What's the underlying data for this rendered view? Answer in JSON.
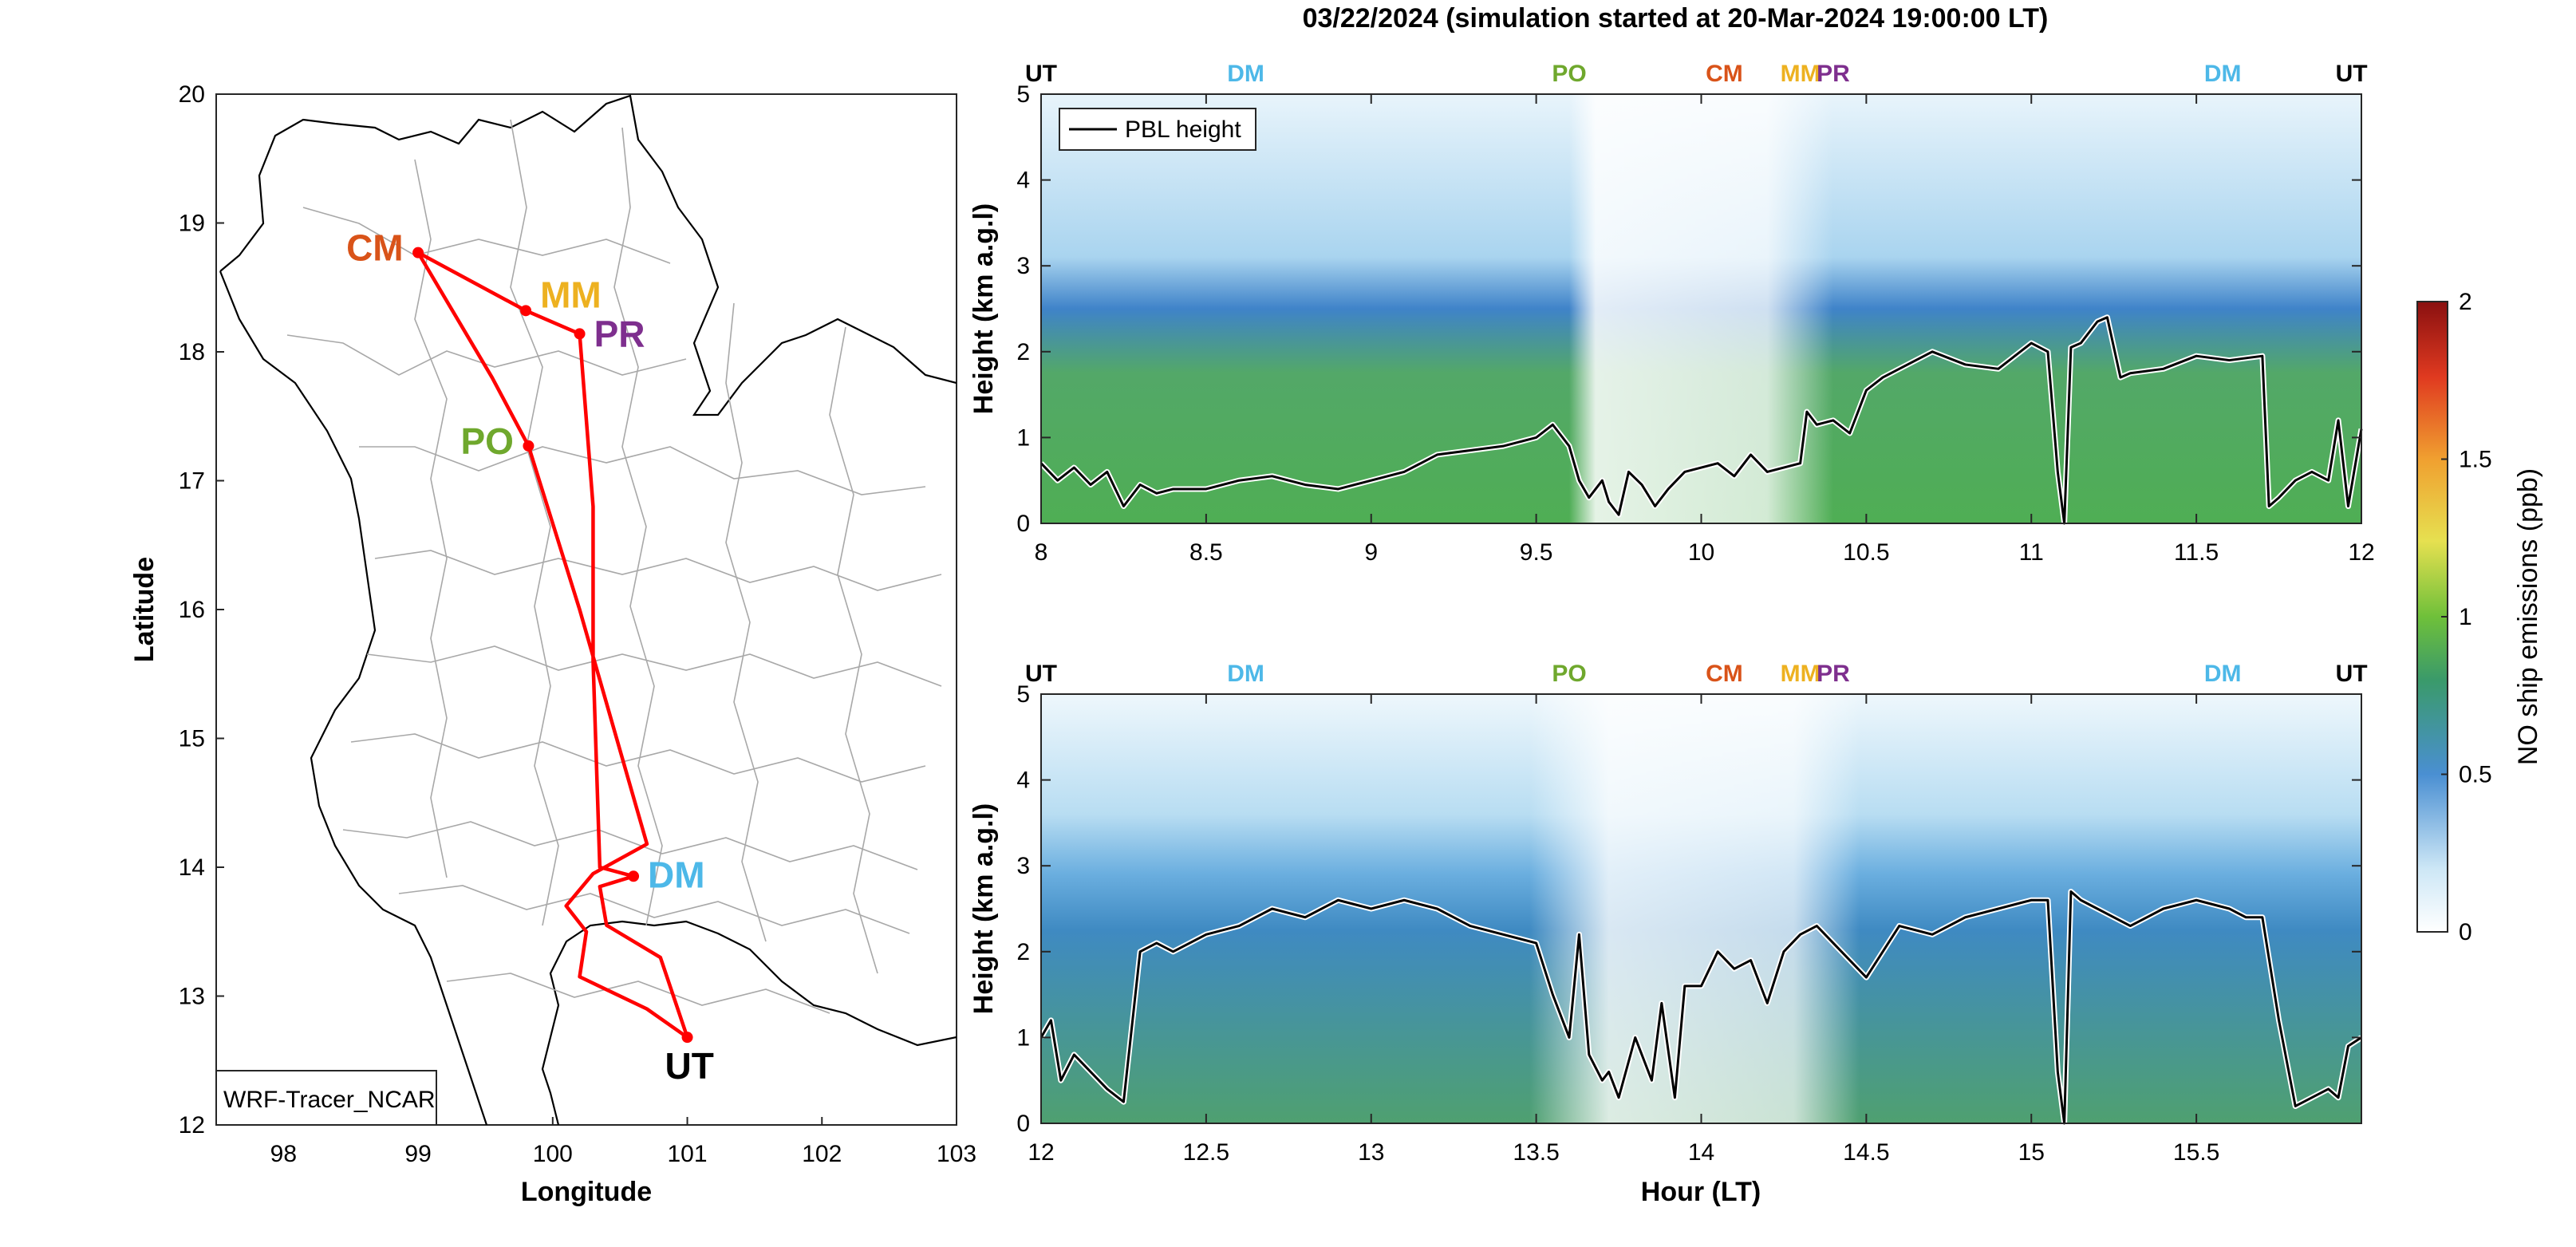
{
  "title": "03/22/2024 (simulation started at 20-Mar-2024 19:00:00 LT)",
  "site_colors": {
    "UT": "#000000",
    "DM": "#4db8e8",
    "PO": "#6fa82d",
    "CM": "#d95319",
    "MM": "#edb120",
    "PR": "#7e2f8e"
  },
  "chart_data": [
    {
      "type": "map",
      "xlabel": "Longitude",
      "ylabel": "Latitude",
      "xlim": [
        97.5,
        103
      ],
      "ylim": [
        12,
        20
      ],
      "xticks": [
        "98",
        "99",
        "100",
        "101",
        "102",
        "103"
      ],
      "yticks": [
        "12",
        "13",
        "14",
        "15",
        "16",
        "17",
        "18",
        "19",
        "20"
      ],
      "legend_box": "WRF-Tracer_NCAR",
      "flight_track_color": "#ff0000",
      "sites": [
        {
          "name": "CM",
          "lon": 99.0,
          "lat": 18.77
        },
        {
          "name": "MM",
          "lon": 99.8,
          "lat": 18.32
        },
        {
          "name": "PR",
          "lon": 100.2,
          "lat": 18.14
        },
        {
          "name": "PO",
          "lon": 99.82,
          "lat": 17.27
        },
        {
          "name": "DM",
          "lon": 100.6,
          "lat": 13.93
        },
        {
          "name": "UT",
          "lon": 101.0,
          "lat": 12.68
        }
      ],
      "track": [
        [
          101.0,
          12.68
        ],
        [
          100.7,
          12.9
        ],
        [
          100.2,
          13.15
        ],
        [
          100.25,
          13.5
        ],
        [
          100.1,
          13.7
        ],
        [
          100.3,
          13.95
        ],
        [
          100.7,
          14.18
        ],
        [
          100.2,
          16.0
        ],
        [
          99.82,
          17.27
        ],
        [
          99.55,
          17.8
        ],
        [
          99.0,
          18.77
        ],
        [
          99.8,
          18.32
        ],
        [
          100.2,
          18.14
        ],
        [
          100.3,
          16.8
        ],
        [
          100.3,
          15.6
        ],
        [
          100.35,
          14.0
        ],
        [
          100.6,
          13.93
        ],
        [
          100.35,
          13.85
        ],
        [
          100.4,
          13.55
        ],
        [
          100.8,
          13.3
        ],
        [
          101.0,
          12.68
        ]
      ]
    },
    {
      "type": "heatmap",
      "xlabel": "",
      "ylabel": "Height (km a.g.l)",
      "xlim": [
        8,
        12
      ],
      "ylim": [
        0,
        5
      ],
      "xticks": [
        "8",
        "8.5",
        "9",
        "9.5",
        "10",
        "10.5",
        "11",
        "11.5",
        "12"
      ],
      "yticks": [
        "0",
        "1",
        "2",
        "3",
        "4",
        "5"
      ],
      "legend": "PBL height",
      "top_markers": [
        {
          "label": "UT",
          "x": 8.0
        },
        {
          "label": "DM",
          "x": 8.62
        },
        {
          "label": "PO",
          "x": 9.6
        },
        {
          "label": "CM",
          "x": 10.07
        },
        {
          "label": "MM",
          "x": 10.3
        },
        {
          "label": "PR",
          "x": 10.4
        },
        {
          "label": "DM",
          "x": 11.58
        },
        {
          "label": "UT",
          "x": 11.97
        }
      ],
      "pbl_series": {
        "name": "PBL height",
        "x": [
          8.0,
          8.05,
          8.1,
          8.15,
          8.2,
          8.25,
          8.3,
          8.35,
          8.4,
          8.5,
          8.6,
          8.7,
          8.8,
          8.9,
          9.0,
          9.1,
          9.2,
          9.3,
          9.4,
          9.5,
          9.55,
          9.6,
          9.63,
          9.66,
          9.7,
          9.72,
          9.75,
          9.78,
          9.82,
          9.86,
          9.9,
          9.95,
          10.0,
          10.05,
          10.1,
          10.15,
          10.2,
          10.25,
          10.3,
          10.32,
          10.35,
          10.4,
          10.45,
          10.5,
          10.55,
          10.6,
          10.7,
          10.8,
          10.9,
          11.0,
          11.05,
          11.08,
          11.1,
          11.12,
          11.15,
          11.2,
          11.23,
          11.27,
          11.3,
          11.4,
          11.5,
          11.6,
          11.7,
          11.72,
          11.75,
          11.8,
          11.85,
          11.9,
          11.93,
          11.96,
          12.0
        ],
        "y": [
          0.7,
          0.5,
          0.65,
          0.45,
          0.6,
          0.2,
          0.45,
          0.35,
          0.4,
          0.4,
          0.5,
          0.55,
          0.45,
          0.4,
          0.5,
          0.6,
          0.8,
          0.85,
          0.9,
          1.0,
          1.15,
          0.9,
          0.5,
          0.3,
          0.5,
          0.25,
          0.1,
          0.6,
          0.45,
          0.2,
          0.4,
          0.6,
          0.65,
          0.7,
          0.55,
          0.8,
          0.6,
          0.65,
          0.7,
          1.3,
          1.15,
          1.2,
          1.05,
          1.55,
          1.7,
          1.8,
          2.0,
          1.85,
          1.8,
          2.1,
          2.0,
          0.6,
          0.0,
          2.05,
          2.1,
          2.35,
          2.4,
          1.7,
          1.75,
          1.8,
          1.95,
          1.9,
          1.95,
          0.2,
          0.3,
          0.5,
          0.6,
          0.5,
          1.2,
          0.2,
          1.1
        ]
      }
    },
    {
      "type": "heatmap",
      "xlabel": "Hour (LT)",
      "ylabel": "Height (km a.g.l)",
      "xlim": [
        12,
        16
      ],
      "ylim": [
        0,
        5
      ],
      "xticks": [
        "12",
        "12.5",
        "13",
        "13.5",
        "14",
        "14.5",
        "15",
        "15.5"
      ],
      "yticks": [
        "0",
        "1",
        "2",
        "3",
        "4",
        "5"
      ],
      "top_markers": [
        {
          "label": "UT",
          "x": 12.0
        },
        {
          "label": "DM",
          "x": 12.62
        },
        {
          "label": "PO",
          "x": 13.6
        },
        {
          "label": "CM",
          "x": 14.07
        },
        {
          "label": "MM",
          "x": 14.3
        },
        {
          "label": "PR",
          "x": 14.4
        },
        {
          "label": "DM",
          "x": 15.58
        },
        {
          "label": "UT",
          "x": 15.97
        }
      ],
      "pbl_series": {
        "name": "PBL height",
        "x": [
          12.0,
          12.03,
          12.06,
          12.1,
          12.15,
          12.2,
          12.25,
          12.3,
          12.35,
          12.4,
          12.5,
          12.6,
          12.7,
          12.8,
          12.9,
          13.0,
          13.1,
          13.2,
          13.3,
          13.4,
          13.5,
          13.55,
          13.6,
          13.63,
          13.66,
          13.7,
          13.72,
          13.75,
          13.8,
          13.85,
          13.88,
          13.92,
          13.95,
          14.0,
          14.05,
          14.1,
          14.15,
          14.2,
          14.25,
          14.3,
          14.35,
          14.4,
          14.5,
          14.55,
          14.6,
          14.7,
          14.8,
          14.9,
          15.0,
          15.05,
          15.08,
          15.1,
          15.12,
          15.15,
          15.2,
          15.3,
          15.4,
          15.5,
          15.6,
          15.65,
          15.7,
          15.75,
          15.8,
          15.85,
          15.9,
          15.93,
          15.96,
          16.0
        ],
        "y": [
          1.0,
          1.2,
          0.5,
          0.8,
          0.6,
          0.4,
          0.25,
          2.0,
          2.1,
          2.0,
          2.2,
          2.3,
          2.5,
          2.4,
          2.6,
          2.5,
          2.6,
          2.5,
          2.3,
          2.2,
          2.1,
          1.5,
          1.0,
          2.2,
          0.8,
          0.5,
          0.6,
          0.3,
          1.0,
          0.5,
          1.4,
          0.3,
          1.6,
          1.6,
          2.0,
          1.8,
          1.9,
          1.4,
          2.0,
          2.2,
          2.3,
          2.1,
          1.7,
          2.0,
          2.3,
          2.2,
          2.4,
          2.5,
          2.6,
          2.6,
          0.6,
          0.0,
          2.7,
          2.6,
          2.5,
          2.3,
          2.5,
          2.6,
          2.5,
          2.4,
          2.4,
          1.2,
          0.2,
          0.3,
          0.4,
          0.3,
          0.9,
          1.0
        ]
      }
    },
    {
      "type": "colorbar",
      "label": "NO ship emissions (ppb)",
      "range": [
        0,
        2
      ],
      "ticks": [
        "0",
        "0.5",
        "1",
        "1.5",
        "2"
      ]
    }
  ]
}
